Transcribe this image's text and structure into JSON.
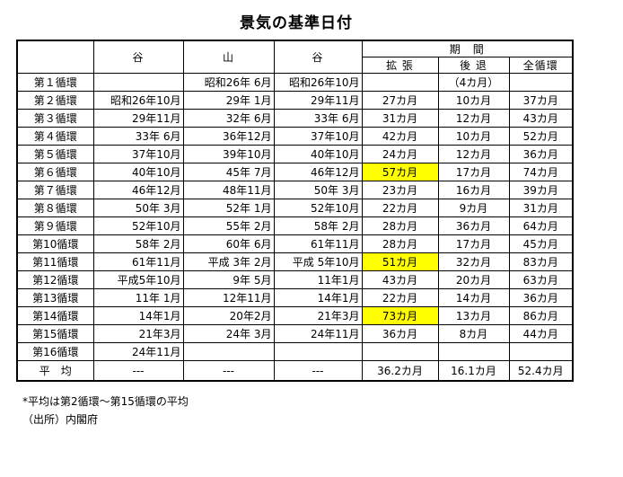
{
  "title": "景気の基準日付",
  "colors": {
    "highlight": "#FFFF00",
    "border": "#000000",
    "text": "#000000"
  },
  "table": {
    "headers": {
      "corner": "",
      "valley1": "谷",
      "mountain": "山",
      "valley2": "谷",
      "period": "期　間",
      "expansion": "拡 張",
      "recession": "後 退",
      "full_cycle": "全循環"
    },
    "rows": [
      {
        "label": "第１循環",
        "cells": [
          "",
          "昭和26年 6月",
          "昭和26年10月",
          "",
          "（4カ月）",
          ""
        ],
        "highlight_col": null
      },
      {
        "label": "第２循環",
        "cells": [
          "昭和26年10月",
          "29年 1月",
          "29年11月",
          "27カ月",
          "10カ月",
          "37カ月"
        ],
        "highlight_col": null
      },
      {
        "label": "第３循環",
        "cells": [
          "29年11月",
          "32年 6月",
          "33年 6月",
          "31カ月",
          "12カ月",
          "43カ月"
        ],
        "highlight_col": null
      },
      {
        "label": "第４循環",
        "cells": [
          "33年 6月",
          "36年12月",
          "37年10月",
          "42カ月",
          "10カ月",
          "52カ月"
        ],
        "highlight_col": null
      },
      {
        "label": "第５循環",
        "cells": [
          "37年10月",
          "39年10月",
          "40年10月",
          "24カ月",
          "12カ月",
          "36カ月"
        ],
        "highlight_col": null
      },
      {
        "label": "第６循環",
        "cells": [
          "40年10月",
          "45年 7月",
          "46年12月",
          "57カ月",
          "17カ月",
          "74カ月"
        ],
        "highlight_col": 3
      },
      {
        "label": "第７循環",
        "cells": [
          "46年12月",
          "48年11月",
          "50年 3月",
          "23カ月",
          "16カ月",
          "39カ月"
        ],
        "highlight_col": null
      },
      {
        "label": "第８循環",
        "cells": [
          "50年 3月",
          "52年 1月",
          "52年10月",
          "22カ月",
          "9カ月",
          "31カ月"
        ],
        "highlight_col": null
      },
      {
        "label": "第９循環",
        "cells": [
          "52年10月",
          "55年 2月",
          "58年 2月",
          "28カ月",
          "36カ月",
          "64カ月"
        ],
        "highlight_col": null
      },
      {
        "label": "第10循環",
        "cells": [
          "58年 2月",
          "60年 6月",
          "61年11月",
          "28カ月",
          "17カ月",
          "45カ月"
        ],
        "highlight_col": null
      },
      {
        "label": "第11循環",
        "cells": [
          "61年11月",
          "平成 3年 2月",
          "平成 5年10月",
          "51カ月",
          "32カ月",
          "83カ月"
        ],
        "highlight_col": 3
      },
      {
        "label": "第12循環",
        "cells": [
          "平成5年10月",
          "9年 5月",
          "11年1月",
          "43カ月",
          "20カ月",
          "63カ月"
        ],
        "highlight_col": null
      },
      {
        "label": "第13循環",
        "cells": [
          "11年 1月",
          "12年11月",
          "14年1月",
          "22カ月",
          "14カ月",
          "36カ月"
        ],
        "highlight_col": null
      },
      {
        "label": "第14循環",
        "cells": [
          "14年1月",
          "20年2月",
          "21年3月",
          "73カ月",
          "13カ月",
          "86カ月"
        ],
        "highlight_col": 3
      },
      {
        "label": "第15循環",
        "cells": [
          "21年3月",
          "24年 3月",
          "24年11月",
          "36カ月",
          "8カ月",
          "44カ月"
        ],
        "highlight_col": null
      },
      {
        "label": "第16循環",
        "cells": [
          "24年11月",
          "",
          "",
          "",
          "",
          ""
        ],
        "highlight_col": null
      }
    ],
    "average": {
      "label": "平　均",
      "cells": [
        "---",
        "---",
        "---",
        "36.2カ月",
        "16.1カ月",
        "52.4カ月"
      ]
    }
  },
  "footnotes": [
    "*平均は第2循環～第15循環の平均",
    "（出所）内閣府"
  ]
}
